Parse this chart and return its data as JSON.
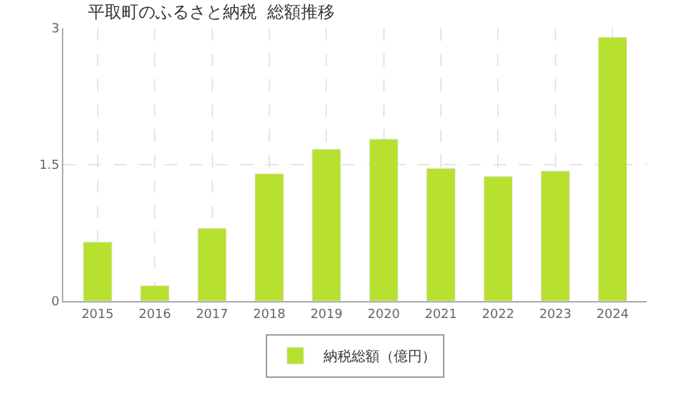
{
  "chart_data": {
    "type": "bar",
    "title": "平取町のふるさと納税  総額推移",
    "categories": [
      "2015",
      "2016",
      "2017",
      "2018",
      "2019",
      "2020",
      "2021",
      "2022",
      "2023",
      "2024"
    ],
    "series": [
      {
        "name": "納税総額（億円）",
        "color": "#b8e02e",
        "values": [
          0.65,
          0.17,
          0.8,
          1.4,
          1.67,
          1.78,
          1.46,
          1.37,
          1.43,
          2.9
        ]
      }
    ],
    "ylim": [
      0,
      3
    ],
    "yticks": [
      0,
      1.5,
      3
    ],
    "grid": true,
    "legend": "bottom"
  }
}
